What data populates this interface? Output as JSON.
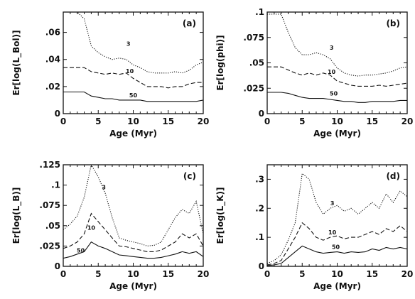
{
  "chart_data": [
    {
      "type": "line",
      "panel_label": "(a)",
      "xlabel": "Age (Myr)",
      "ylabel": "Er[log(L_Bol)]",
      "xlim": [
        0,
        20
      ],
      "ylim": [
        0,
        0.075
      ],
      "xticks": [
        0,
        5,
        10,
        15,
        20
      ],
      "yticks": [
        0,
        0.02,
        0.04,
        0.06
      ],
      "ytick_labels": [
        "0",
        ".02",
        ".04",
        ".06"
      ],
      "x": [
        0,
        1,
        2,
        3,
        4,
        5,
        6,
        7,
        8,
        9,
        10,
        11,
        12,
        13,
        14,
        15,
        16,
        17,
        18,
        19,
        20
      ],
      "series": [
        {
          "name": "3",
          "style": "dotted",
          "label_at": [
            9.3,
            0.05
          ],
          "values": [
            0.075,
            0.075,
            0.075,
            0.07,
            0.05,
            0.045,
            0.042,
            0.04,
            0.041,
            0.04,
            0.036,
            0.034,
            0.031,
            0.03,
            0.03,
            0.03,
            0.031,
            0.03,
            0.032,
            0.036,
            0.038
          ]
        },
        {
          "name": "10",
          "style": "dashed",
          "label_at": [
            9.5,
            0.03
          ],
          "values": [
            0.034,
            0.034,
            0.034,
            0.034,
            0.031,
            0.03,
            0.029,
            0.03,
            0.029,
            0.03,
            0.026,
            0.023,
            0.02,
            0.02,
            0.02,
            0.019,
            0.02,
            0.02,
            0.022,
            0.023,
            0.023
          ]
        },
        {
          "name": "50",
          "style": "solid",
          "label_at": [
            10.0,
            0.012
          ],
          "values": [
            0.016,
            0.016,
            0.016,
            0.016,
            0.013,
            0.012,
            0.011,
            0.011,
            0.01,
            0.01,
            0.01,
            0.01,
            0.009,
            0.009,
            0.009,
            0.009,
            0.009,
            0.009,
            0.009,
            0.009,
            0.01
          ]
        }
      ]
    },
    {
      "type": "line",
      "panel_label": "(b)",
      "xlabel": "Age (Myr)",
      "ylabel": "Er[log(phi)]",
      "xlim": [
        0,
        20
      ],
      "ylim": [
        0,
        0.1
      ],
      "xticks": [
        0,
        5,
        10,
        15,
        20
      ],
      "yticks": [
        0,
        0.025,
        0.05,
        0.075,
        0.1
      ],
      "ytick_labels": [
        "0",
        ".025",
        ".05",
        ".075",
        ".1"
      ],
      "x": [
        0,
        1,
        2,
        3,
        4,
        5,
        6,
        7,
        8,
        9,
        10,
        11,
        12,
        13,
        14,
        15,
        16,
        17,
        18,
        19,
        20
      ],
      "series": [
        {
          "name": "3",
          "style": "dotted",
          "label_at": [
            9.2,
            0.063
          ],
          "values": [
            0.098,
            0.098,
            0.098,
            0.08,
            0.065,
            0.058,
            0.058,
            0.06,
            0.058,
            0.054,
            0.045,
            0.04,
            0.038,
            0.037,
            0.038,
            0.038,
            0.039,
            0.04,
            0.042,
            0.045,
            0.046
          ]
        },
        {
          "name": "10",
          "style": "dashed",
          "label_at": [
            9.2,
            0.039
          ],
          "values": [
            0.046,
            0.046,
            0.046,
            0.043,
            0.04,
            0.038,
            0.04,
            0.038,
            0.04,
            0.038,
            0.032,
            0.03,
            0.028,
            0.027,
            0.027,
            0.027,
            0.028,
            0.027,
            0.028,
            0.029,
            0.03
          ]
        },
        {
          "name": "50",
          "style": "solid",
          "label_at": [
            9.5,
            0.018
          ],
          "values": [
            0.021,
            0.021,
            0.021,
            0.02,
            0.018,
            0.016,
            0.015,
            0.015,
            0.015,
            0.014,
            0.013,
            0.012,
            0.012,
            0.011,
            0.011,
            0.012,
            0.012,
            0.012,
            0.012,
            0.013,
            0.013
          ]
        }
      ]
    },
    {
      "type": "line",
      "panel_label": "(c)",
      "xlabel": "Age (Myr)",
      "ylabel": "Er[log(L_B)]",
      "xlim": [
        0,
        20
      ],
      "ylim": [
        0,
        0.125
      ],
      "xticks": [
        0,
        5,
        10,
        15,
        20
      ],
      "yticks": [
        0,
        0.025,
        0.05,
        0.075,
        0.1,
        0.125
      ],
      "ytick_labels": [
        "0",
        ".025",
        ".05",
        ".075",
        ".1",
        ".125"
      ],
      "x": [
        0,
        1,
        2,
        3,
        4,
        5,
        6,
        7,
        8,
        9,
        10,
        11,
        12,
        13,
        14,
        15,
        16,
        17,
        18,
        19,
        20
      ],
      "series": [
        {
          "name": "3",
          "style": "dotted",
          "label_at": [
            5.8,
            0.095
          ],
          "values": [
            0.045,
            0.052,
            0.062,
            0.085,
            0.125,
            0.11,
            0.09,
            0.06,
            0.035,
            0.032,
            0.03,
            0.028,
            0.025,
            0.026,
            0.03,
            0.045,
            0.06,
            0.07,
            0.065,
            0.08,
            0.04
          ]
        },
        {
          "name": "10",
          "style": "dashed",
          "label_at": [
            4.0,
            0.045
          ],
          "values": [
            0.022,
            0.025,
            0.03,
            0.04,
            0.065,
            0.055,
            0.045,
            0.035,
            0.025,
            0.024,
            0.022,
            0.02,
            0.018,
            0.018,
            0.02,
            0.025,
            0.03,
            0.04,
            0.035,
            0.04,
            0.025
          ]
        },
        {
          "name": "50",
          "style": "solid",
          "label_at": [
            2.5,
            0.017
          ],
          "values": [
            0.01,
            0.012,
            0.015,
            0.018,
            0.03,
            0.025,
            0.022,
            0.018,
            0.014,
            0.013,
            0.012,
            0.011,
            0.01,
            0.01,
            0.011,
            0.013,
            0.015,
            0.018,
            0.016,
            0.018,
            0.012
          ]
        }
      ]
    },
    {
      "type": "line",
      "panel_label": "(d)",
      "xlabel": "Age (Myr)",
      "ylabel": "Er[log(L_K)]",
      "xlim": [
        0,
        20
      ],
      "ylim": [
        0,
        0.35
      ],
      "xticks": [
        0,
        5,
        10,
        15,
        20
      ],
      "yticks": [
        0,
        0.1,
        0.2,
        0.3
      ],
      "ytick_labels": [
        "0",
        ".1",
        ".2",
        ".3"
      ],
      "x": [
        0,
        1,
        2,
        3,
        4,
        5,
        6,
        7,
        8,
        9,
        10,
        11,
        12,
        13,
        14,
        15,
        16,
        17,
        18,
        19,
        20
      ],
      "series": [
        {
          "name": "3",
          "style": "dotted",
          "label_at": [
            9.3,
            0.21
          ],
          "values": [
            0.01,
            0.02,
            0.04,
            0.09,
            0.15,
            0.32,
            0.3,
            0.22,
            0.18,
            0.2,
            0.21,
            0.19,
            0.2,
            0.18,
            0.2,
            0.22,
            0.2,
            0.25,
            0.22,
            0.26,
            0.24
          ]
        },
        {
          "name": "10",
          "style": "dashed",
          "label_at": [
            9.3,
            0.11
          ],
          "values": [
            0.005,
            0.01,
            0.02,
            0.06,
            0.1,
            0.15,
            0.13,
            0.1,
            0.09,
            0.1,
            0.105,
            0.095,
            0.1,
            0.1,
            0.11,
            0.12,
            0.11,
            0.13,
            0.12,
            0.14,
            0.12
          ]
        },
        {
          "name": "50",
          "style": "solid",
          "label_at": [
            9.8,
            0.06
          ],
          "values": [
            0.003,
            0.005,
            0.01,
            0.03,
            0.05,
            0.07,
            0.06,
            0.05,
            0.045,
            0.048,
            0.05,
            0.045,
            0.05,
            0.048,
            0.05,
            0.06,
            0.055,
            0.065,
            0.06,
            0.065,
            0.06
          ]
        }
      ]
    }
  ]
}
